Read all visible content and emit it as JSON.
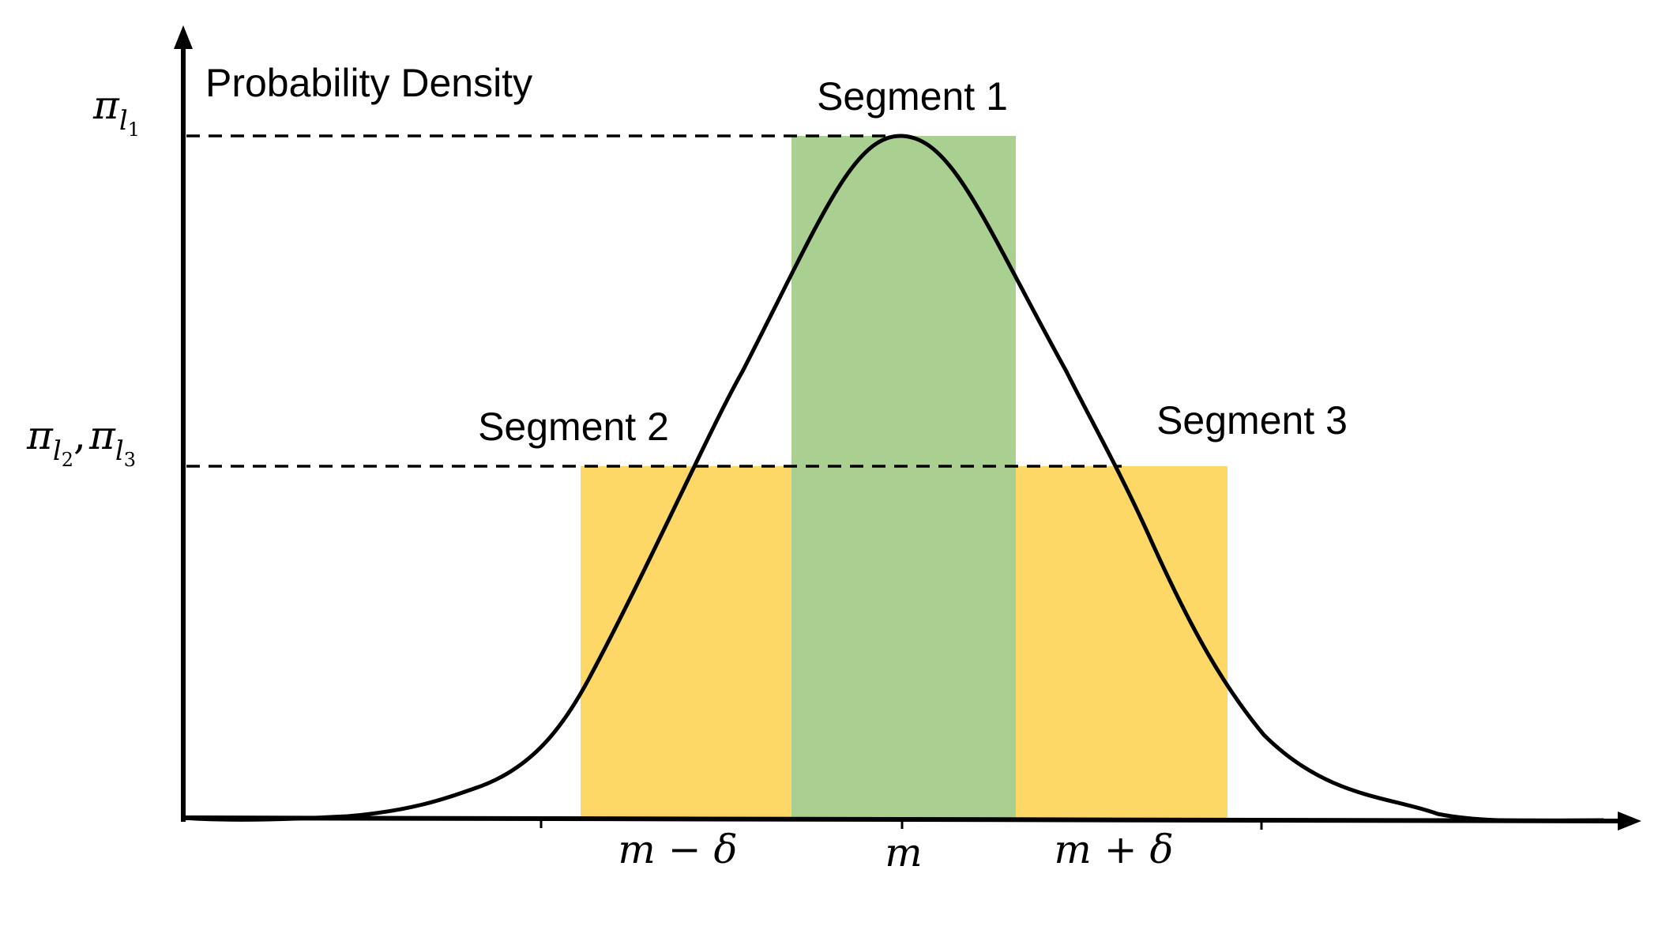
{
  "axis": {
    "y_label": "Probability Density",
    "y_ticks": [
      {
        "name": "pi-l1",
        "parts": [
          [
            "π",
            "l",
            "1"
          ]
        ]
      },
      {
        "name": "pi-l2-l3",
        "parts": [
          [
            "π",
            "l",
            "2"
          ],
          [
            "π",
            "l",
            "3"
          ]
        ],
        "separator": ","
      }
    ],
    "x_ticks": [
      {
        "name": "m-minus-delta",
        "text": "m − δ"
      },
      {
        "name": "m",
        "text": "m"
      },
      {
        "name": "m-plus-delta",
        "text": "m + δ"
      }
    ]
  },
  "segments": [
    {
      "id": "segment-1",
      "label": "Segment 1",
      "color": "#A9CF91",
      "level": "pi_l1"
    },
    {
      "id": "segment-2",
      "label": "Segment 2",
      "color": "#FDD866",
      "level": "pi_l2"
    },
    {
      "id": "segment-3",
      "label": "Segment 3",
      "color": "#FDD866",
      "level": "pi_l3"
    }
  ],
  "colors": {
    "axis": "#000000",
    "curve": "#000000",
    "dashed": "#000000",
    "baseline_gray": "#E4E4E4"
  }
}
